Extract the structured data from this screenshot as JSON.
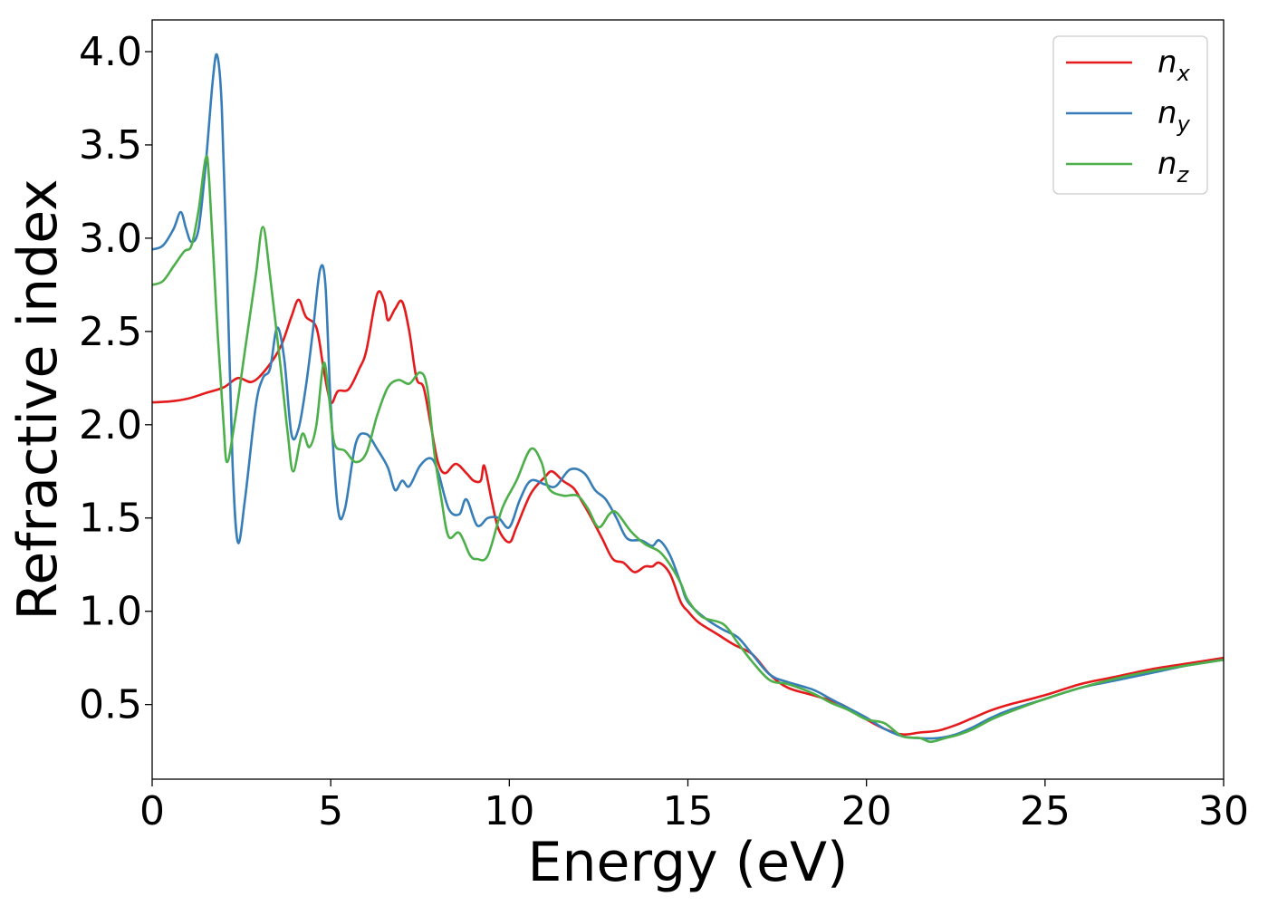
{
  "chart_data": {
    "type": "line",
    "title": "",
    "xlabel": "Energy (eV)",
    "ylabel": "Refractive index",
    "xlim": [
      0,
      30
    ],
    "ylim": [
      0.1,
      4.17
    ],
    "xticks": [
      0,
      5,
      10,
      15,
      20,
      25,
      30
    ],
    "yticks": [
      0.5,
      1.0,
      1.5,
      2.0,
      2.5,
      3.0,
      3.5,
      4.0
    ],
    "xtick_labels": [
      "0",
      "5",
      "10",
      "15",
      "20",
      "25",
      "30"
    ],
    "ytick_labels": [
      "0.5",
      "1.0",
      "1.5",
      "2.0",
      "2.5",
      "3.0",
      "3.5",
      "4.0"
    ],
    "grid": false,
    "legend_position": "top-right",
    "series": [
      {
        "name": "n_x",
        "label_base": "n",
        "label_sub": "x",
        "color": "#e41a1c",
        "points": [
          [
            0,
            2.12
          ],
          [
            0.5,
            2.125
          ],
          [
            1.0,
            2.14
          ],
          [
            1.5,
            2.17
          ],
          [
            2.0,
            2.2
          ],
          [
            2.4,
            2.25
          ],
          [
            2.8,
            2.23
          ],
          [
            3.2,
            2.3
          ],
          [
            3.6,
            2.42
          ],
          [
            3.9,
            2.58
          ],
          [
            4.1,
            2.67
          ],
          [
            4.3,
            2.58
          ],
          [
            4.6,
            2.52
          ],
          [
            4.8,
            2.3
          ],
          [
            5.0,
            2.12
          ],
          [
            5.2,
            2.18
          ],
          [
            5.5,
            2.19
          ],
          [
            5.8,
            2.3
          ],
          [
            6.0,
            2.4
          ],
          [
            6.3,
            2.7
          ],
          [
            6.5,
            2.66
          ],
          [
            6.6,
            2.56
          ],
          [
            6.8,
            2.62
          ],
          [
            7.0,
            2.66
          ],
          [
            7.2,
            2.5
          ],
          [
            7.4,
            2.25
          ],
          [
            7.6,
            2.2
          ],
          [
            7.8,
            2.0
          ],
          [
            8.0,
            1.8
          ],
          [
            8.2,
            1.74
          ],
          [
            8.5,
            1.79
          ],
          [
            8.8,
            1.74
          ],
          [
            9.0,
            1.7
          ],
          [
            9.2,
            1.7
          ],
          [
            9.3,
            1.78
          ],
          [
            9.5,
            1.6
          ],
          [
            9.7,
            1.44
          ],
          [
            10.0,
            1.37
          ],
          [
            10.2,
            1.45
          ],
          [
            10.6,
            1.63
          ],
          [
            11.0,
            1.72
          ],
          [
            11.2,
            1.75
          ],
          [
            11.5,
            1.7
          ],
          [
            11.8,
            1.66
          ],
          [
            12.0,
            1.6
          ],
          [
            12.3,
            1.5
          ],
          [
            12.6,
            1.39
          ],
          [
            12.9,
            1.28
          ],
          [
            13.2,
            1.26
          ],
          [
            13.5,
            1.21
          ],
          [
            13.8,
            1.24
          ],
          [
            14.0,
            1.24
          ],
          [
            14.2,
            1.26
          ],
          [
            14.5,
            1.2
          ],
          [
            14.8,
            1.05
          ],
          [
            15.0,
            1.0
          ],
          [
            15.3,
            0.94
          ],
          [
            15.8,
            0.88
          ],
          [
            16.3,
            0.82
          ],
          [
            16.8,
            0.77
          ],
          [
            17.3,
            0.66
          ],
          [
            17.8,
            0.59
          ],
          [
            18.5,
            0.55
          ],
          [
            19.3,
            0.5
          ],
          [
            20.0,
            0.42
          ],
          [
            20.5,
            0.37
          ],
          [
            21.0,
            0.34
          ],
          [
            21.5,
            0.35
          ],
          [
            22.0,
            0.36
          ],
          [
            22.5,
            0.39
          ],
          [
            23.0,
            0.43
          ],
          [
            23.5,
            0.47
          ],
          [
            24.0,
            0.5
          ],
          [
            25.0,
            0.55
          ],
          [
            26.0,
            0.61
          ],
          [
            27.0,
            0.65
          ],
          [
            28.0,
            0.69
          ],
          [
            29.0,
            0.72
          ],
          [
            30.0,
            0.75
          ]
        ]
      },
      {
        "name": "n_y",
        "label_base": "n",
        "label_sub": "y",
        "color": "#377eb8",
        "points": [
          [
            0,
            2.94
          ],
          [
            0.3,
            2.96
          ],
          [
            0.6,
            3.05
          ],
          [
            0.8,
            3.14
          ],
          [
            0.95,
            3.05
          ],
          [
            1.1,
            2.98
          ],
          [
            1.3,
            3.05
          ],
          [
            1.5,
            3.4
          ],
          [
            1.7,
            3.85
          ],
          [
            1.82,
            3.98
          ],
          [
            1.95,
            3.7
          ],
          [
            2.1,
            2.8
          ],
          [
            2.25,
            1.8
          ],
          [
            2.4,
            1.37
          ],
          [
            2.6,
            1.6
          ],
          [
            2.9,
            2.1
          ],
          [
            3.1,
            2.25
          ],
          [
            3.3,
            2.3
          ],
          [
            3.5,
            2.52
          ],
          [
            3.7,
            2.35
          ],
          [
            3.9,
            1.95
          ],
          [
            4.1,
            1.98
          ],
          [
            4.3,
            2.2
          ],
          [
            4.5,
            2.5
          ],
          [
            4.7,
            2.83
          ],
          [
            4.85,
            2.75
          ],
          [
            5.0,
            2.1
          ],
          [
            5.2,
            1.55
          ],
          [
            5.4,
            1.55
          ],
          [
            5.7,
            1.9
          ],
          [
            6.0,
            1.95
          ],
          [
            6.3,
            1.87
          ],
          [
            6.6,
            1.77
          ],
          [
            6.8,
            1.65
          ],
          [
            7.0,
            1.7
          ],
          [
            7.2,
            1.67
          ],
          [
            7.5,
            1.78
          ],
          [
            7.8,
            1.82
          ],
          [
            8.0,
            1.75
          ],
          [
            8.3,
            1.55
          ],
          [
            8.6,
            1.52
          ],
          [
            8.8,
            1.6
          ],
          [
            9.1,
            1.46
          ],
          [
            9.4,
            1.5
          ],
          [
            9.7,
            1.5
          ],
          [
            10.0,
            1.45
          ],
          [
            10.3,
            1.6
          ],
          [
            10.6,
            1.7
          ],
          [
            11.0,
            1.68
          ],
          [
            11.3,
            1.67
          ],
          [
            11.7,
            1.76
          ],
          [
            12.1,
            1.74
          ],
          [
            12.4,
            1.65
          ],
          [
            12.7,
            1.6
          ],
          [
            13.0,
            1.5
          ],
          [
            13.3,
            1.39
          ],
          [
            13.7,
            1.38
          ],
          [
            14.0,
            1.35
          ],
          [
            14.2,
            1.38
          ],
          [
            14.5,
            1.3
          ],
          [
            14.8,
            1.15
          ],
          [
            15.0,
            1.05
          ],
          [
            15.5,
            0.96
          ],
          [
            16.0,
            0.9
          ],
          [
            16.4,
            0.86
          ],
          [
            16.8,
            0.77
          ],
          [
            17.3,
            0.66
          ],
          [
            17.8,
            0.62
          ],
          [
            18.5,
            0.58
          ],
          [
            19.0,
            0.53
          ],
          [
            19.5,
            0.48
          ],
          [
            20.0,
            0.43
          ],
          [
            20.5,
            0.37
          ],
          [
            21.0,
            0.33
          ],
          [
            21.5,
            0.32
          ],
          [
            22.0,
            0.32
          ],
          [
            22.5,
            0.34
          ],
          [
            23.0,
            0.38
          ],
          [
            23.5,
            0.43
          ],
          [
            24.0,
            0.47
          ],
          [
            25.0,
            0.53
          ],
          [
            26.0,
            0.59
          ],
          [
            27.0,
            0.63
          ],
          [
            28.0,
            0.67
          ],
          [
            29.0,
            0.71
          ],
          [
            30.0,
            0.74
          ]
        ]
      },
      {
        "name": "n_z",
        "label_base": "n",
        "label_sub": "z",
        "color": "#4daf4a",
        "points": [
          [
            0,
            2.75
          ],
          [
            0.3,
            2.77
          ],
          [
            0.6,
            2.85
          ],
          [
            0.9,
            2.93
          ],
          [
            1.1,
            2.96
          ],
          [
            1.3,
            3.15
          ],
          [
            1.5,
            3.43
          ],
          [
            1.6,
            3.3
          ],
          [
            1.8,
            2.6
          ],
          [
            2.0,
            2.0
          ],
          [
            2.1,
            1.8
          ],
          [
            2.3,
            2.0
          ],
          [
            2.6,
            2.4
          ],
          [
            2.9,
            2.8
          ],
          [
            3.1,
            3.06
          ],
          [
            3.3,
            2.8
          ],
          [
            3.6,
            2.3
          ],
          [
            3.8,
            1.95
          ],
          [
            3.95,
            1.75
          ],
          [
            4.2,
            1.95
          ],
          [
            4.4,
            1.88
          ],
          [
            4.6,
            2.0
          ],
          [
            4.8,
            2.33
          ],
          [
            4.95,
            2.15
          ],
          [
            5.1,
            1.9
          ],
          [
            5.4,
            1.86
          ],
          [
            5.7,
            1.8
          ],
          [
            6.0,
            1.85
          ],
          [
            6.3,
            2.05
          ],
          [
            6.6,
            2.2
          ],
          [
            6.9,
            2.24
          ],
          [
            7.2,
            2.22
          ],
          [
            7.5,
            2.28
          ],
          [
            7.7,
            2.2
          ],
          [
            7.9,
            1.85
          ],
          [
            8.1,
            1.6
          ],
          [
            8.3,
            1.4
          ],
          [
            8.6,
            1.42
          ],
          [
            8.9,
            1.3
          ],
          [
            9.1,
            1.28
          ],
          [
            9.4,
            1.3
          ],
          [
            9.8,
            1.55
          ],
          [
            10.2,
            1.7
          ],
          [
            10.6,
            1.87
          ],
          [
            10.9,
            1.8
          ],
          [
            11.1,
            1.66
          ],
          [
            11.5,
            1.62
          ],
          [
            11.9,
            1.62
          ],
          [
            12.2,
            1.55
          ],
          [
            12.5,
            1.45
          ],
          [
            12.8,
            1.52
          ],
          [
            13.0,
            1.53
          ],
          [
            13.4,
            1.43
          ],
          [
            13.8,
            1.36
          ],
          [
            14.2,
            1.32
          ],
          [
            14.5,
            1.25
          ],
          [
            14.8,
            1.15
          ],
          [
            15.0,
            1.06
          ],
          [
            15.4,
            0.97
          ],
          [
            16.0,
            0.93
          ],
          [
            16.4,
            0.83
          ],
          [
            16.8,
            0.73
          ],
          [
            17.3,
            0.63
          ],
          [
            17.8,
            0.61
          ],
          [
            18.5,
            0.56
          ],
          [
            19.0,
            0.51
          ],
          [
            19.5,
            0.47
          ],
          [
            20.0,
            0.42
          ],
          [
            20.5,
            0.4
          ],
          [
            21.0,
            0.33
          ],
          [
            21.5,
            0.32
          ],
          [
            21.8,
            0.3
          ],
          [
            22.2,
            0.32
          ],
          [
            22.6,
            0.34
          ],
          [
            23.0,
            0.37
          ],
          [
            23.5,
            0.42
          ],
          [
            24.0,
            0.46
          ],
          [
            25.0,
            0.53
          ],
          [
            26.0,
            0.59
          ],
          [
            27.0,
            0.64
          ],
          [
            28.0,
            0.68
          ],
          [
            29.0,
            0.71
          ],
          [
            30.0,
            0.74
          ]
        ]
      }
    ]
  }
}
